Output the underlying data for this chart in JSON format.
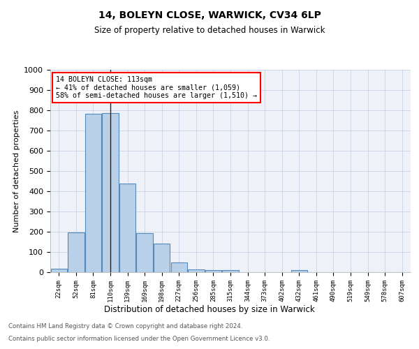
{
  "title": "14, BOLEYN CLOSE, WARWICK, CV34 6LP",
  "subtitle": "Size of property relative to detached houses in Warwick",
  "xlabel": "Distribution of detached houses by size in Warwick",
  "ylabel": "Number of detached properties",
  "bar_color": "#b8d0e8",
  "bar_edge_color": "#5588bb",
  "categories": [
    "22sqm",
    "52sqm",
    "81sqm",
    "110sqm",
    "139sqm",
    "169sqm",
    "198sqm",
    "227sqm",
    "256sqm",
    "285sqm",
    "315sqm",
    "344sqm",
    "373sqm",
    "402sqm",
    "432sqm",
    "461sqm",
    "490sqm",
    "519sqm",
    "549sqm",
    "578sqm",
    "607sqm"
  ],
  "values": [
    18,
    196,
    783,
    787,
    437,
    192,
    140,
    50,
    15,
    12,
    12,
    0,
    0,
    0,
    10,
    0,
    0,
    0,
    0,
    0,
    0
  ],
  "highlight_index": 3,
  "ylim": [
    0,
    1000
  ],
  "yticks": [
    0,
    100,
    200,
    300,
    400,
    500,
    600,
    700,
    800,
    900,
    1000
  ],
  "annotation_text_line1": "14 BOLEYN CLOSE: 113sqm",
  "annotation_text_line2": "← 41% of detached houses are smaller (1,059)",
  "annotation_text_line3": "58% of semi-detached houses are larger (1,510) →",
  "footer_line1": "Contains HM Land Registry data © Crown copyright and database right 2024.",
  "footer_line2": "Contains public sector information licensed under the Open Government Licence v3.0.",
  "bg_color": "#eef2f8",
  "grid_color": "#c8d4e8"
}
